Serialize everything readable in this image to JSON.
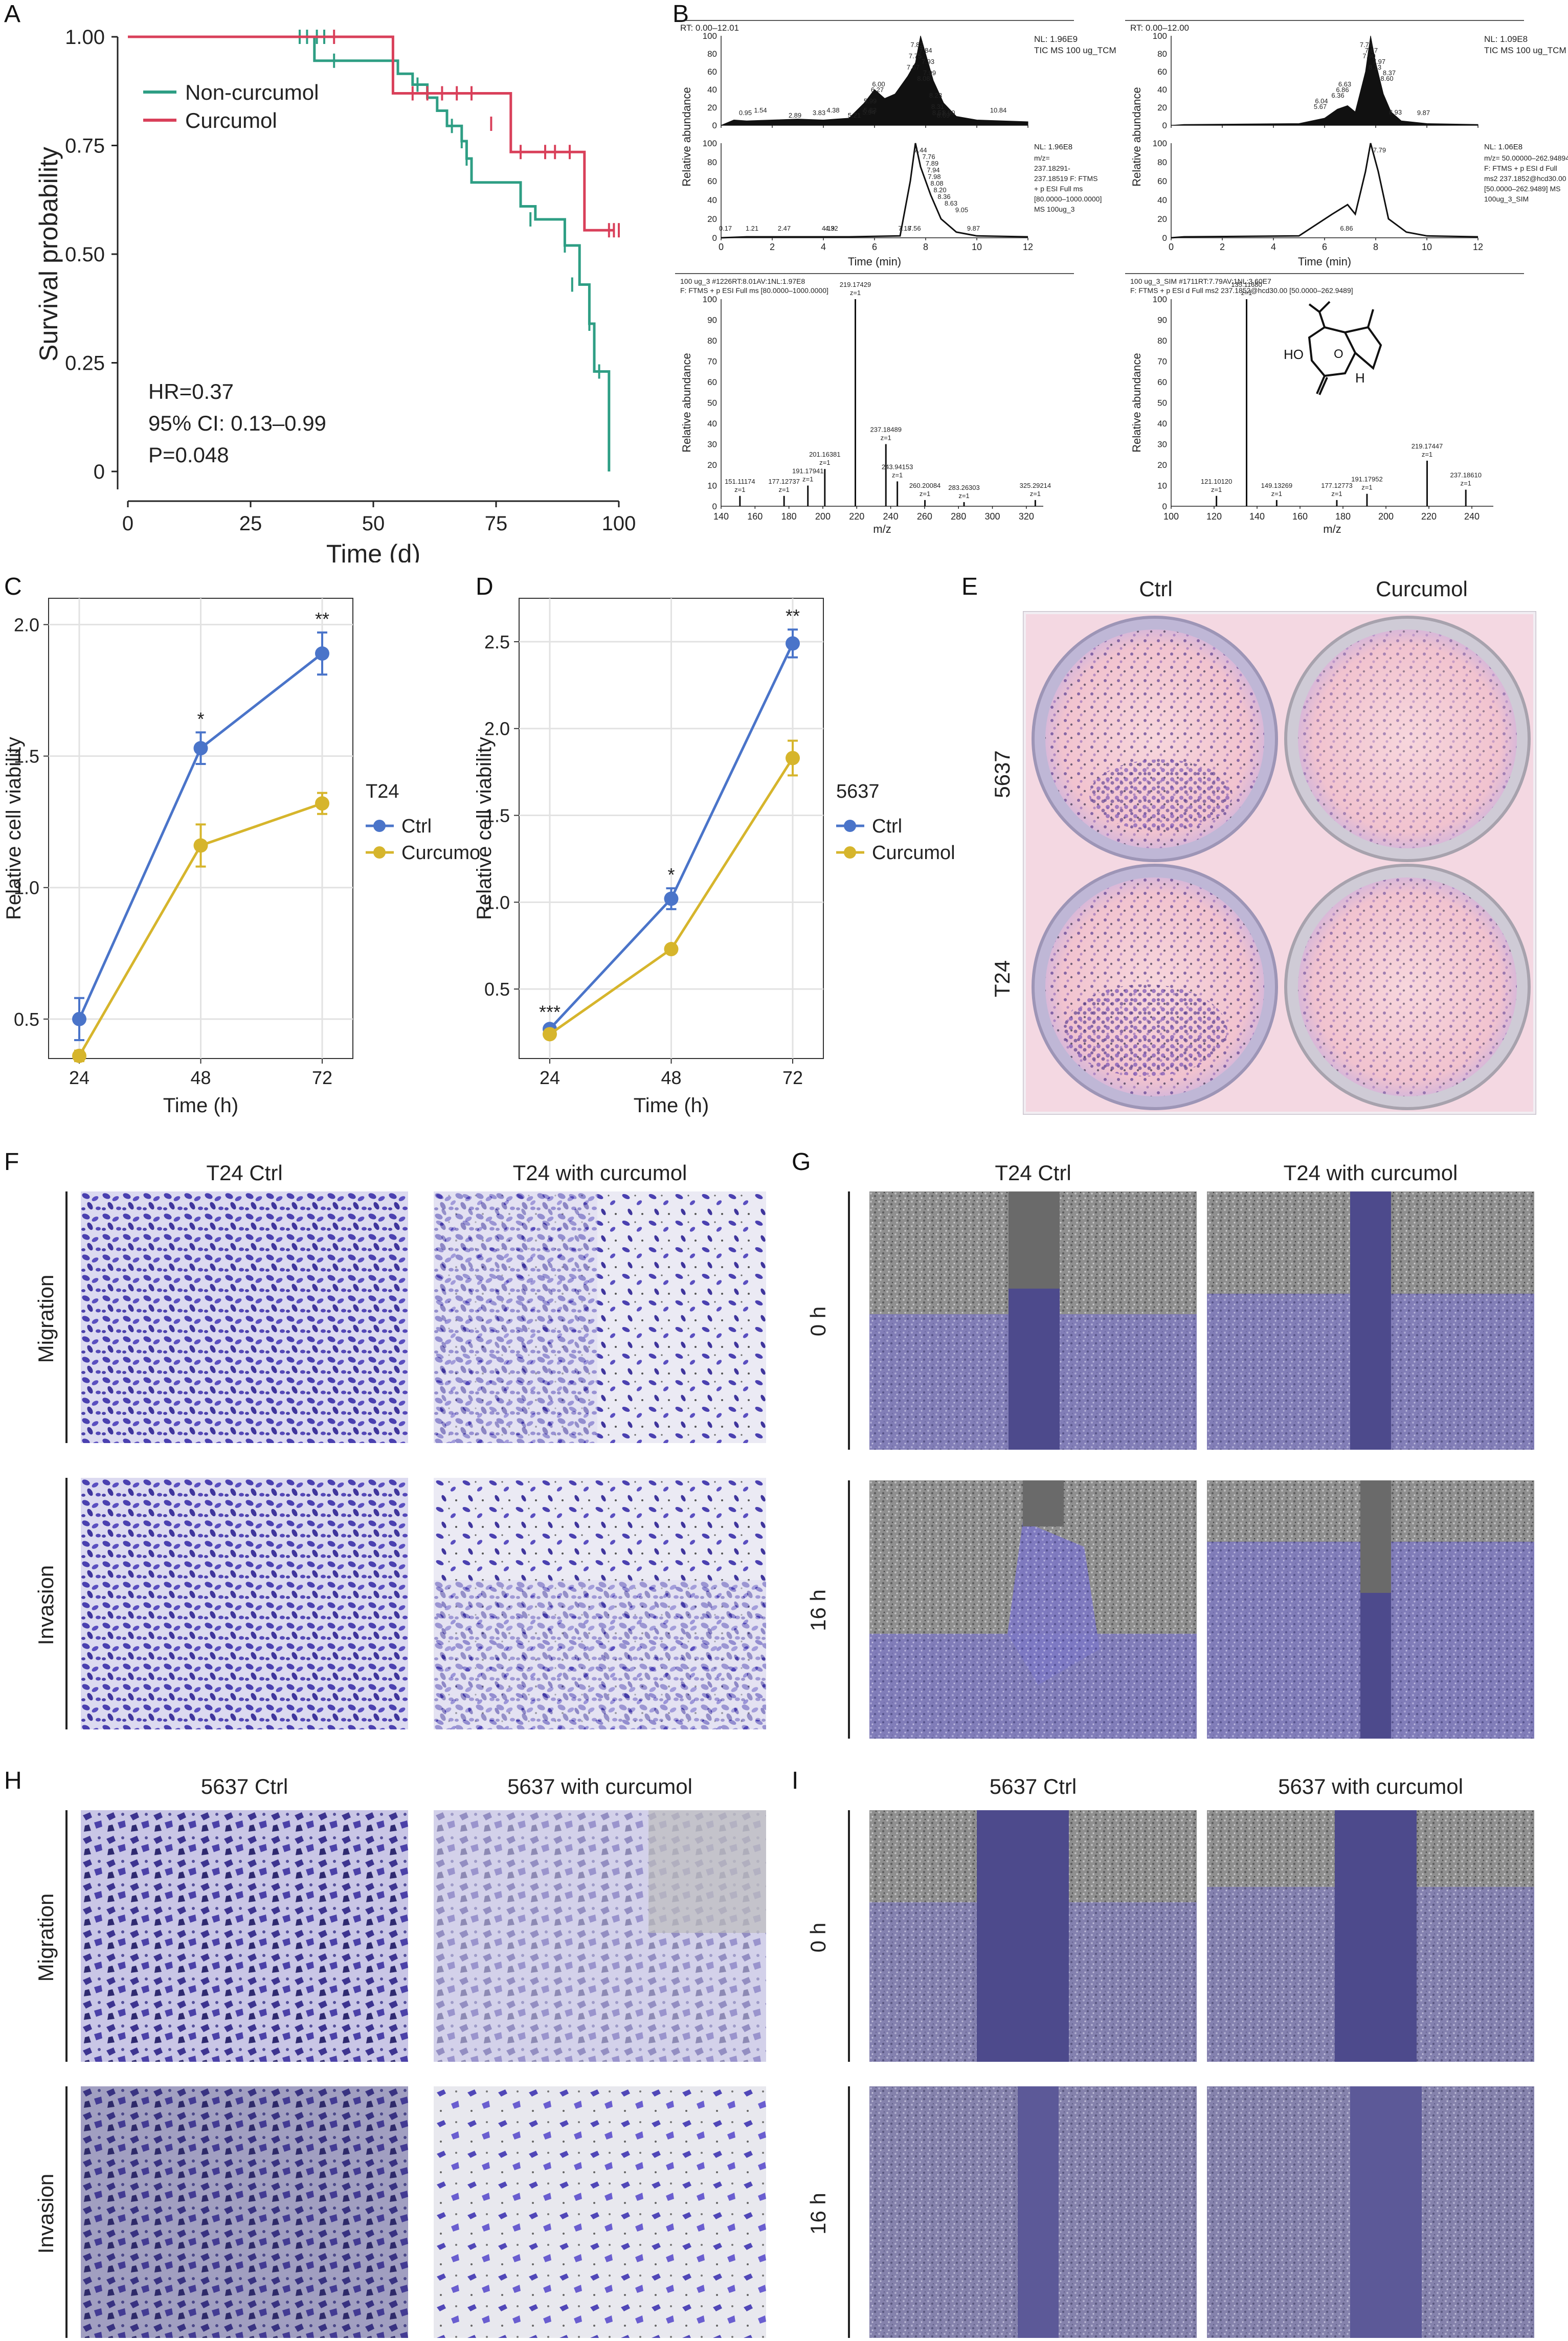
{
  "panel_letters": {
    "A": "A",
    "B": "B",
    "C": "C",
    "D": "D",
    "E": "E",
    "F": "F",
    "G": "G",
    "H": "H",
    "I": "I"
  },
  "colors": {
    "green": "#2e9e84",
    "red": "#d9405a",
    "blue": "#4a74c9",
    "yellow": "#d6b52c",
    "purple": "#5b54b4",
    "wound": "#4d4a8c"
  },
  "chart_data": [
    {
      "panel": "A",
      "type": "line",
      "step": true,
      "xlabel": "Time (d)",
      "ylabel": "Survival probability",
      "xlim": [
        0,
        100
      ],
      "ylim": [
        0,
        1.0
      ],
      "xticks": [
        "0",
        "25",
        "50",
        "75",
        "100"
      ],
      "yticks": [
        "0",
        "0.25",
        "0.50",
        "0.75",
        "1.00"
      ],
      "legend": [
        "Non-curcumol",
        "Curcumol"
      ],
      "annotations": [
        "HR=0.37",
        "95% CI: 0.13–0.99",
        "P=0.048"
      ],
      "series": [
        {
          "name": "Non-curcumol",
          "color": "#2e9e84",
          "x": [
            0,
            38,
            54,
            55,
            57,
            58,
            61,
            63,
            65,
            68,
            69,
            70,
            80,
            83,
            89,
            92,
            94,
            95,
            98,
            98
          ],
          "y": [
            1.0,
            0.945,
            0.945,
            0.915,
            0.915,
            0.89,
            0.86,
            0.83,
            0.795,
            0.76,
            0.72,
            0.665,
            0.61,
            0.58,
            0.52,
            0.43,
            0.34,
            0.23,
            0.23,
            0.0
          ],
          "censor_x": [
            35,
            36.5,
            38.5,
            40,
            42,
            59,
            66,
            68,
            69,
            82,
            89,
            90.5,
            94,
            96
          ],
          "censor_y": [
            1.0,
            1.0,
            1.0,
            1.0,
            0.945,
            0.89,
            0.795,
            0.76,
            0.72,
            0.58,
            0.52,
            0.43,
            0.34,
            0.23
          ]
        },
        {
          "name": "Curcumol",
          "color": "#d9405a",
          "x": [
            0,
            53,
            54,
            78,
            93,
            99
          ],
          "y": [
            1.0,
            1.0,
            0.87,
            0.735,
            0.555,
            0.555
          ],
          "censor_x": [
            42,
            58,
            61,
            64,
            67,
            70,
            74,
            80,
            85,
            87,
            90,
            98,
            99,
            100
          ],
          "censor_y": [
            1.0,
            0.87,
            0.87,
            0.87,
            0.87,
            0.87,
            0.8,
            0.735,
            0.735,
            0.735,
            0.735,
            0.555,
            0.555,
            0.555
          ]
        }
      ]
    },
    {
      "panel": "B-chrom-left",
      "type": "line",
      "xlabel": "Time (min)",
      "ylabel": "Relative abundance",
      "header": "RT: 0.00–12.01",
      "nl_top": "NL: 1.96E9",
      "tic_top": "TIC  MS 100 ug_TCM",
      "nl_bottom": "NL: 1.96E8",
      "bottom_info": [
        "m/z=",
        "237.18291-",
        "237.18519 F: FTMS",
        "+ p ESI Full ms",
        "[80.0000–1000.0000]",
        "MS 100ug_3"
      ],
      "xticks": [
        "0",
        "2",
        "4",
        "6",
        "8",
        "10",
        "12"
      ],
      "yticks": [
        "0",
        "20",
        "40",
        "60",
        "80",
        "100"
      ],
      "peak_labels_top": [
        "7.82",
        "7.84",
        "7.75",
        "7.93",
        "7.67",
        "7.99",
        "8.08",
        "6.00",
        "6.27",
        "8.23",
        "5.99",
        "8.31",
        "5.94",
        "8.51",
        "5.83",
        "8.69",
        "8.90",
        "10.84",
        "5.21",
        "0.95",
        "1.54",
        "2.89",
        "3.83",
        "4.38",
        "5.21"
      ],
      "peak_labels_bottom": [
        "7.44",
        "7.76",
        "7.89",
        "7.94",
        "7.98",
        "8.08",
        "8.20",
        "8.36",
        "8.63",
        "9.05",
        "9.87",
        "0.17",
        "1.21",
        "2.47",
        "4.19",
        "4.32",
        "7.18",
        "7.56"
      ]
    },
    {
      "panel": "B-chrom-right",
      "type": "line",
      "xlabel": "Time (min)",
      "ylabel": "Relative abundance",
      "header": "RT: 0.00–12.00",
      "nl_top": "NL: 1.09E8",
      "tic_top": "TIC  MS 100 ug_TCM",
      "nl_bottom": "NL: 1.06E8",
      "bottom_info": [
        "m/z= 50.00000–262.94894",
        "F: FTMS + p ESI d Full",
        "ms2 237.1852@hcd30.00",
        "[50.0000–262.9489]  MS",
        "100ug_3_SIM"
      ],
      "xticks": [
        "0",
        "2",
        "4",
        "6",
        "8",
        "10",
        "12"
      ],
      "yticks": [
        "0",
        "20",
        "40",
        "60",
        "80",
        "100"
      ],
      "peak_labels_top": [
        "7.79",
        "7.67",
        "7.90",
        "7.97",
        "8.13",
        "8.37",
        "8.60",
        "6.63",
        "6.86",
        "6.36",
        "6.04",
        "5.67",
        "8.93",
        "9.87"
      ],
      "peak_labels_bottom": [
        "7.79",
        "6.86"
      ]
    },
    {
      "panel": "B-ms-left",
      "type": "bar",
      "xlabel": "m/z",
      "ylabel": "Relative abundance",
      "header": [
        "100 ug_3 #1226RT:8.01AV:1NL:1.97E8",
        "F: FTMS + p ESI Full ms [80.0000–1000.0000]"
      ],
      "xlim": [
        140,
        330
      ],
      "ylim": [
        0,
        100
      ],
      "xticks": [
        "140",
        "160",
        "180",
        "200",
        "220",
        "240",
        "260",
        "280",
        "300",
        "320"
      ],
      "yticks": [
        "0",
        "10",
        "20",
        "30",
        "40",
        "50",
        "60",
        "70",
        "80",
        "90",
        "100"
      ],
      "x": [
        151.11,
        177.13,
        191.18,
        201.16,
        219.17,
        237.18,
        243.94,
        260.2,
        283.26,
        325.29
      ],
      "values": [
        5,
        5,
        10,
        18,
        100,
        30,
        12,
        3,
        2,
        3
      ],
      "peak_labels": [
        "151.11174\nz=1",
        "177.12737\nz=1",
        "191.17941\nz=1",
        "201.16381\nz=1",
        "219.17429\nz=1",
        "237.18489\nz=1",
        "243.94153\nz=1",
        "260.20084\nz=1",
        "283.26303\nz=1",
        "325.29214\nz=1"
      ]
    },
    {
      "panel": "B-ms-right",
      "type": "bar",
      "xlabel": "m/z",
      "ylabel": "Relative abundance",
      "header": [
        "100 ug_3_SIM #1711RT:7.79AV:1NL:3.60E7",
        "F: FTMS + p ESI d Full ms2 237.1852@hcd30.00 [50.0000–262.9489]"
      ],
      "xlim": [
        100,
        250
      ],
      "ylim": [
        0,
        100
      ],
      "xticks": [
        "100",
        "120",
        "140",
        "160",
        "180",
        "200",
        "220",
        "240"
      ],
      "yticks": [
        "0",
        "10",
        "20",
        "30",
        "40",
        "50",
        "60",
        "70",
        "80",
        "90",
        "100"
      ],
      "x": [
        121.1,
        135.12,
        149.13,
        177.13,
        191.18,
        219.17,
        237.19
      ],
      "values": [
        5,
        100,
        3,
        3,
        6,
        22,
        8
      ],
      "peak_labels": [
        "121.10120\nz=1",
        "135.11680\nz=1",
        "149.13269\nz=1",
        "177.12773\nz=1",
        "191.17952\nz=1",
        "219.17447\nz=1",
        "237.18610\nz=1"
      ],
      "structure_labels": [
        "HO",
        "O",
        "H"
      ]
    },
    {
      "panel": "C",
      "type": "line",
      "xlabel": "Time (h)",
      "ylabel": "Relative cell viability",
      "legend_title": "T24",
      "categories": [
        "24",
        "48",
        "72"
      ],
      "ylim": [
        0.35,
        2.1
      ],
      "yticks": [
        "0.5",
        "1.0",
        "1.5",
        "2.0"
      ],
      "series": [
        {
          "name": "Ctrl",
          "color": "#4a74c9",
          "values": [
            0.5,
            1.53,
            1.89
          ],
          "err": [
            0.08,
            0.06,
            0.08
          ]
        },
        {
          "name": "Curcumol",
          "color": "#d6b52c",
          "values": [
            0.36,
            1.16,
            1.32
          ],
          "err": [
            0.02,
            0.08,
            0.04
          ]
        }
      ],
      "significance": [
        "",
        "*",
        "**"
      ]
    },
    {
      "panel": "D",
      "type": "line",
      "xlabel": "Time (h)",
      "ylabel": "Relative cell viability",
      "legend_title": "5637",
      "categories": [
        "24",
        "48",
        "72"
      ],
      "ylim": [
        0.1,
        2.75
      ],
      "yticks": [
        "0.5",
        "1.0",
        "1.5",
        "2.0",
        "2.5"
      ],
      "series": [
        {
          "name": "Ctrl",
          "color": "#4a74c9",
          "values": [
            0.27,
            1.02,
            2.49
          ],
          "err": [
            0.02,
            0.06,
            0.08
          ]
        },
        {
          "name": "Curcumol",
          "color": "#d6b52c",
          "values": [
            0.24,
            0.73,
            1.83
          ],
          "err": [
            0.01,
            0.02,
            0.1
          ]
        }
      ],
      "significance": [
        "***",
        "*",
        "**"
      ]
    }
  ],
  "panelE": {
    "col_labels": [
      "Ctrl",
      "Curcumol"
    ],
    "row_labels": [
      "5637",
      "T24"
    ]
  },
  "panelF": {
    "col_labels": [
      "T24 Ctrl",
      "T24 with curcumol"
    ],
    "row_labels": [
      "Migration",
      "Invasion"
    ]
  },
  "panelG": {
    "col_labels": [
      "T24 Ctrl",
      "T24 with curcumol"
    ],
    "row_labels": [
      "0 h",
      "16 h"
    ]
  },
  "panelH": {
    "col_labels": [
      "5637 Ctrl",
      "5637 with curcumol"
    ],
    "row_labels": [
      "Migration",
      "Invasion"
    ]
  },
  "panelI": {
    "col_labels": [
      "5637 Ctrl",
      "5637 with curcumol"
    ],
    "row_labels": [
      "0 h",
      "16 h"
    ]
  }
}
